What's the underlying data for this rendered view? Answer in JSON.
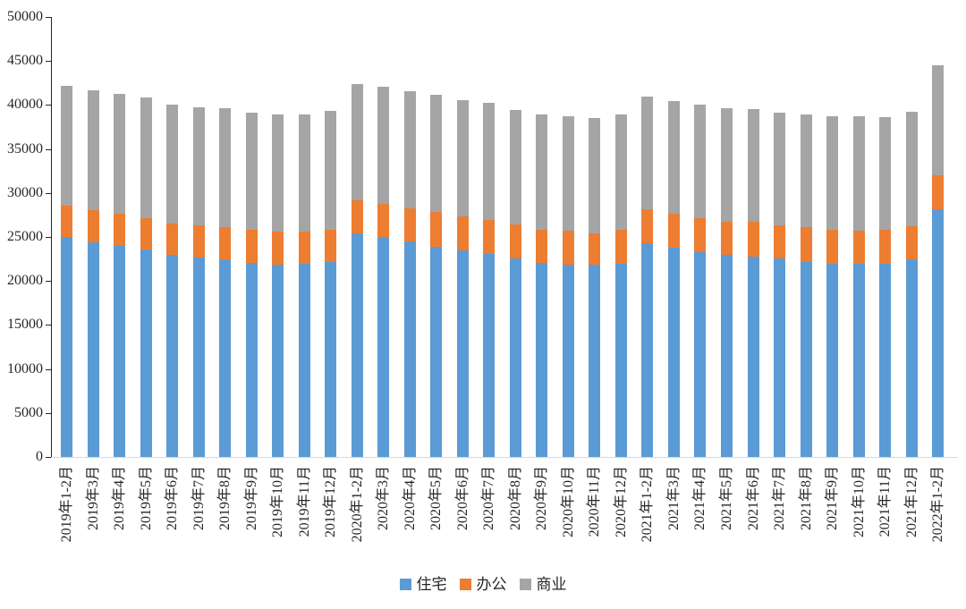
{
  "chart_data": {
    "type": "bar",
    "stacked": true,
    "title": "",
    "xlabel": "",
    "ylabel": "",
    "ylim": [
      0,
      50000
    ],
    "y_ticks": [
      0,
      5000,
      10000,
      15000,
      20000,
      25000,
      30000,
      35000,
      40000,
      45000,
      50000
    ],
    "grid": false,
    "legend_position": "bottom-center",
    "axis_color": "#262626",
    "baseline_color": "#d9d9d9",
    "categories": [
      "2019年1-2月",
      "2019年3月",
      "2019年4月",
      "2019年5月",
      "2019年6月",
      "2019年7月",
      "2019年8月",
      "2019年9月",
      "2019年10月",
      "2019年11月",
      "2019年12月",
      "2020年1-2月",
      "2020年3月",
      "2020年4月",
      "2020年5月",
      "2020年6月",
      "2020年7月",
      "2020年8月",
      "2020年9月",
      "2020年10月",
      "2020年11月",
      "2020年12月",
      "2021年1-2月",
      "2021年3月",
      "2021年4月",
      "2021年5月",
      "2021年6月",
      "2021年7月",
      "2021年8月",
      "2021年9月",
      "2021年10月",
      "2021年11月",
      "2021年12月",
      "2022年1-2月"
    ],
    "series": [
      {
        "name": "住宅",
        "color": "#5b9bd5",
        "values": [
          25000,
          24400,
          24000,
          23550,
          22950,
          22700,
          22450,
          22100,
          21900,
          21950,
          22200,
          25400,
          25050,
          24500,
          23900,
          23450,
          23050,
          22550,
          22100,
          21900,
          21800,
          22000,
          24300,
          23800,
          23300,
          22950,
          22800,
          22550,
          22200,
          22000,
          21950,
          22000,
          22450,
          28150
        ]
      },
      {
        "name": "办公",
        "color": "#ed7d31",
        "values": [
          3600,
          3650,
          3650,
          3600,
          3550,
          3650,
          3650,
          3700,
          3750,
          3650,
          3650,
          3750,
          3700,
          3800,
          3900,
          3850,
          3900,
          3850,
          3700,
          3800,
          3650,
          3800,
          3800,
          3850,
          3800,
          3750,
          3900,
          3800,
          3900,
          3850,
          3800,
          3800,
          3800,
          3850
        ]
      },
      {
        "name": "商业",
        "color": "#a5a5a5",
        "values": [
          13550,
          13600,
          13600,
          13700,
          13550,
          13400,
          13500,
          13350,
          13250,
          13300,
          13450,
          13200,
          13300,
          13250,
          13350,
          13250,
          13250,
          13050,
          13100,
          13050,
          13100,
          13150,
          12850,
          12750,
          12900,
          12950,
          12800,
          12800,
          12850,
          12900,
          13000,
          12850,
          13000,
          12550
        ]
      }
    ]
  }
}
